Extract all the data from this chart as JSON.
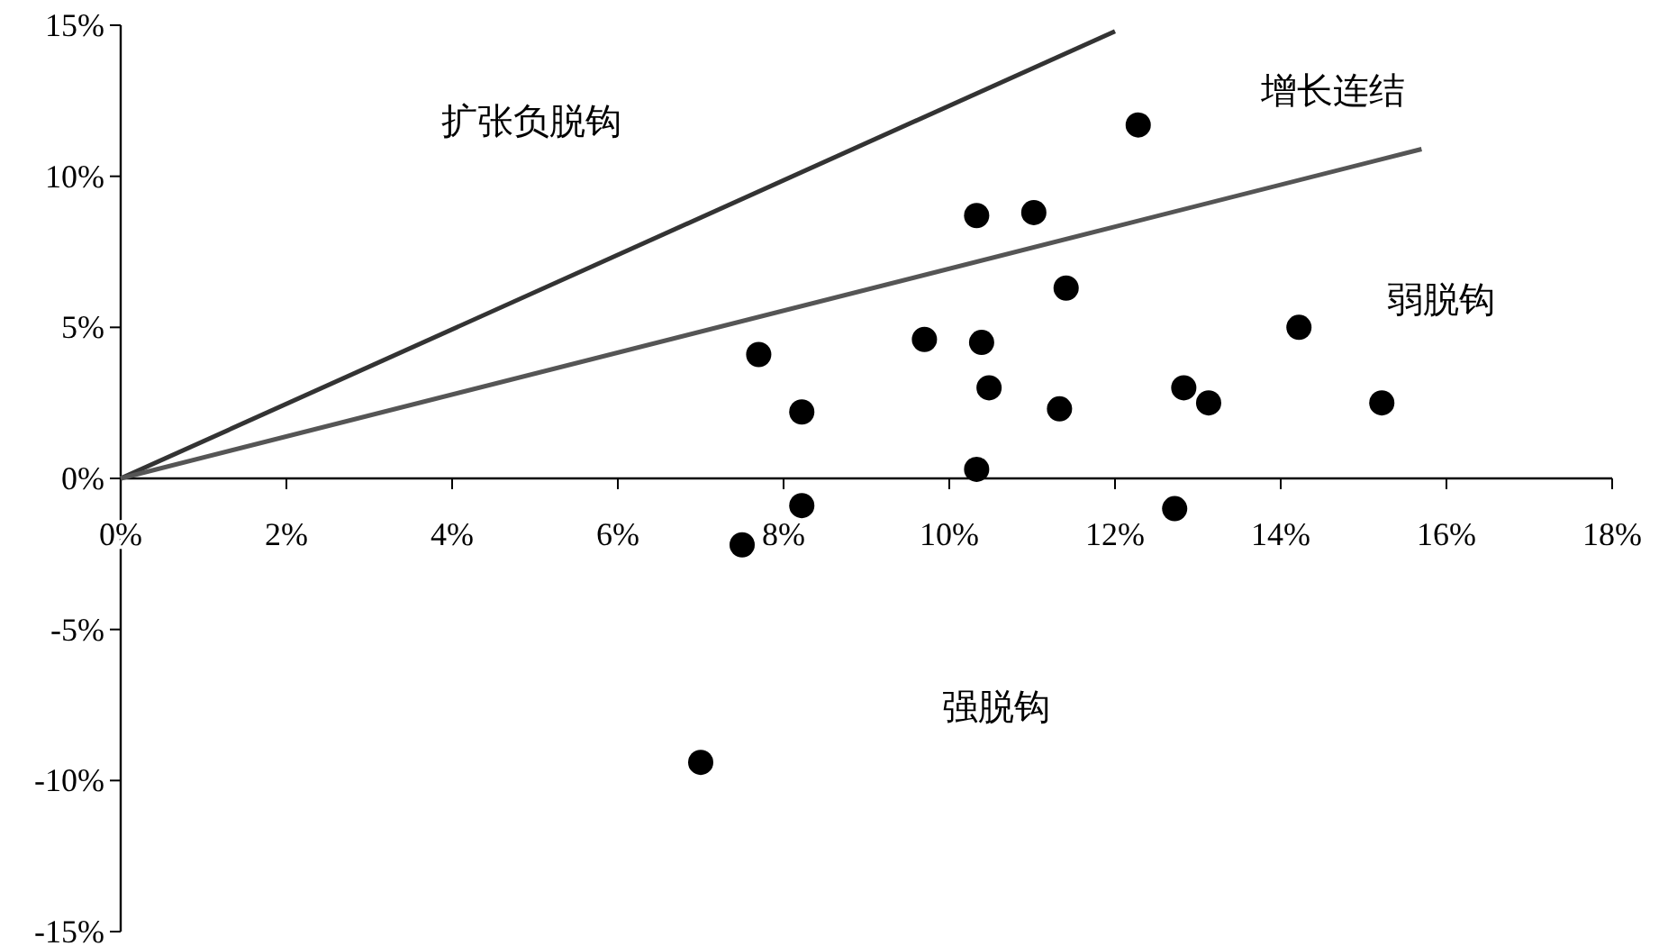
{
  "chart_data": {
    "type": "scatter",
    "grid": false,
    "series": [
      {
        "type": "scatter",
        "marker": "circle",
        "color": "#000000",
        "x": [
          7.7,
          8.22,
          8.22,
          7.5,
          7.0,
          9.7,
          10.33,
          10.39,
          10.48,
          10.33,
          11.02,
          11.41,
          11.33,
          12.28,
          12.72,
          12.83,
          13.13,
          14.22,
          15.22
        ],
        "values": [
          4.1,
          2.2,
          -0.9,
          -2.2,
          -9.4,
          4.6,
          8.7,
          4.5,
          3.0,
          0.3,
          8.8,
          6.3,
          2.3,
          11.7,
          -1.0,
          3.0,
          2.5,
          5.0,
          2.5
        ]
      },
      {
        "type": "line",
        "color": "#333333",
        "x": [
          0,
          12.0
        ],
        "values": [
          0,
          14.8
        ]
      },
      {
        "type": "line",
        "color": "#555555",
        "x": [
          0,
          15.7
        ],
        "values": [
          0,
          10.9
        ]
      }
    ],
    "xlim": [
      0,
      18
    ],
    "ylim": [
      -15,
      15
    ],
    "xticks": [
      {
        "value": 0,
        "label": "0%"
      },
      {
        "value": 2,
        "label": "2%"
      },
      {
        "value": 4,
        "label": "4%"
      },
      {
        "value": 6,
        "label": "6%"
      },
      {
        "value": 8,
        "label": "8%"
      },
      {
        "value": 10,
        "label": "10%"
      },
      {
        "value": 12,
        "label": "12%"
      },
      {
        "value": 14,
        "label": "14%"
      },
      {
        "value": 16,
        "label": "16%"
      },
      {
        "value": 18,
        "label": "18%"
      }
    ],
    "yticks": [
      {
        "value": -15,
        "label": "-15%"
      },
      {
        "value": -10,
        "label": "-10%"
      },
      {
        "value": -5,
        "label": "-5%"
      },
      {
        "value": 0,
        "label": "0%"
      },
      {
        "value": 5,
        "label": "5%"
      },
      {
        "value": 10,
        "label": "10%"
      },
      {
        "value": 15,
        "label": "15%"
      }
    ],
    "annotations": [
      "扩张负脱钩",
      "增长连结",
      "弱脱钩",
      "强脱钩"
    ]
  }
}
